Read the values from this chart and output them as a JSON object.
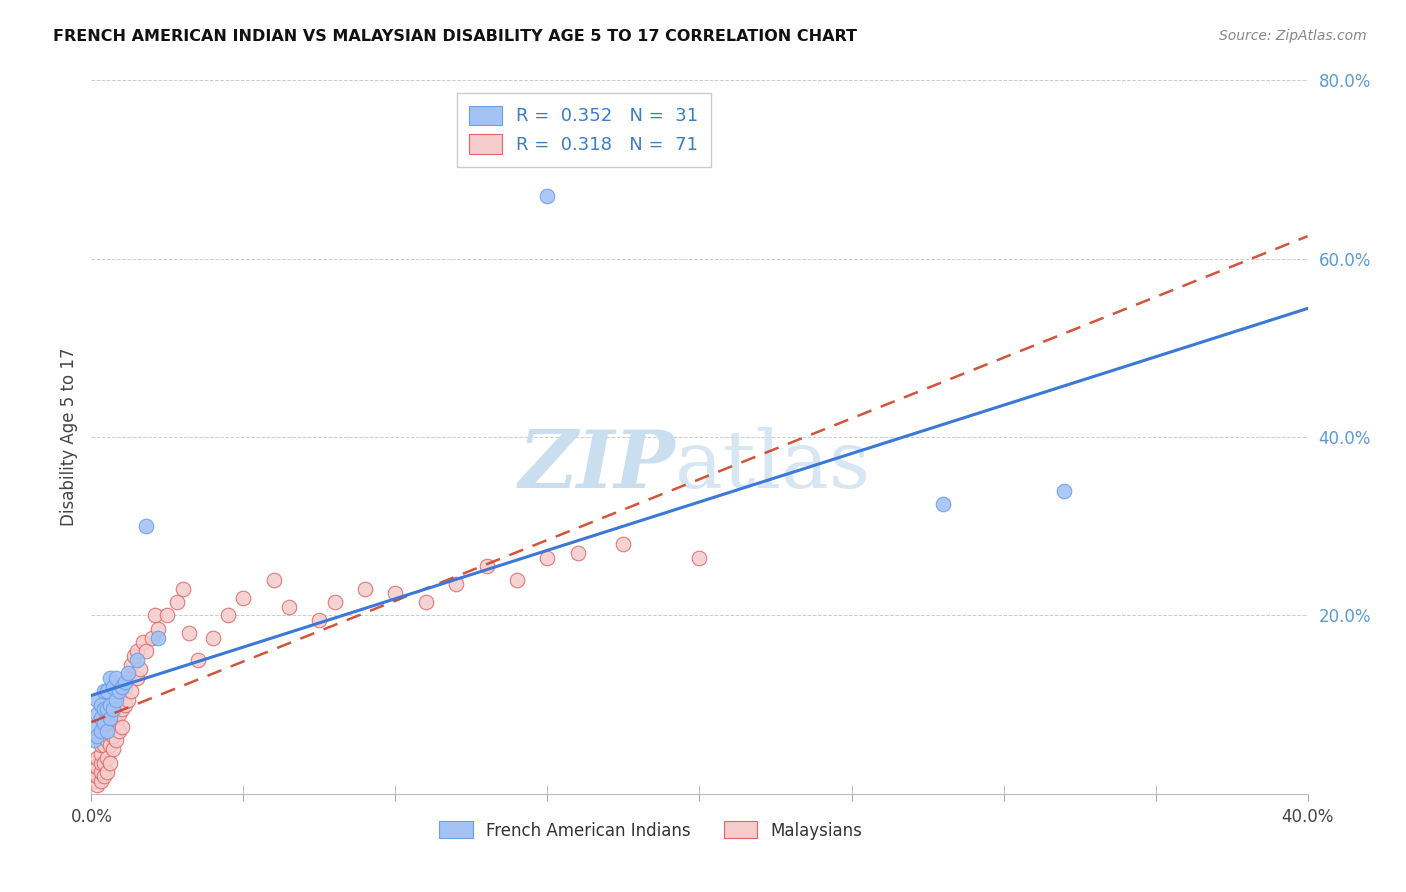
{
  "title": "FRENCH AMERICAN INDIAN VS MALAYSIAN DISABILITY AGE 5 TO 17 CORRELATION CHART",
  "source": "Source: ZipAtlas.com",
  "ylabel": "Disability Age 5 to 17",
  "xlim": [
    0.0,
    0.4
  ],
  "ylim": [
    0.0,
    0.8
  ],
  "xticks": [
    0.0,
    0.05,
    0.1,
    0.15,
    0.2,
    0.25,
    0.3,
    0.35,
    0.4
  ],
  "yticks": [
    0.0,
    0.2,
    0.4,
    0.6,
    0.8
  ],
  "xticklabels": [
    "0.0%",
    "",
    "",
    "",
    "",
    "",
    "",
    "",
    "40.0%"
  ],
  "right_yticklabels": [
    "",
    "20.0%",
    "40.0%",
    "60.0%",
    "80.0%"
  ],
  "legend_r1": "0.352",
  "legend_n1": "31",
  "legend_r2": "0.318",
  "legend_n2": "71",
  "blue_face": "#a4c2f4",
  "blue_edge": "#6d9eeb",
  "blue_line": "#3c78d8",
  "pink_face": "#f4cccc",
  "pink_edge": "#e06666",
  "pink_line": "#cc4125",
  "watermark_zip_color": "#cfe2f3",
  "watermark_atlas_color": "#b8d4e8",
  "grid_color": "#cccccc",
  "french_x": [
    0.001,
    0.001,
    0.002,
    0.002,
    0.002,
    0.003,
    0.003,
    0.003,
    0.004,
    0.004,
    0.004,
    0.005,
    0.005,
    0.005,
    0.006,
    0.006,
    0.006,
    0.007,
    0.007,
    0.008,
    0.008,
    0.009,
    0.01,
    0.011,
    0.012,
    0.015,
    0.018,
    0.022,
    0.15,
    0.28,
    0.32
  ],
  "french_y": [
    0.06,
    0.075,
    0.065,
    0.09,
    0.105,
    0.07,
    0.085,
    0.1,
    0.08,
    0.095,
    0.115,
    0.07,
    0.095,
    0.115,
    0.085,
    0.1,
    0.13,
    0.095,
    0.12,
    0.105,
    0.13,
    0.115,
    0.12,
    0.125,
    0.135,
    0.15,
    0.3,
    0.175,
    0.67,
    0.325,
    0.34
  ],
  "malay_x": [
    0.001,
    0.001,
    0.001,
    0.002,
    0.002,
    0.002,
    0.002,
    0.003,
    0.003,
    0.003,
    0.003,
    0.003,
    0.004,
    0.004,
    0.004,
    0.005,
    0.005,
    0.005,
    0.005,
    0.006,
    0.006,
    0.006,
    0.006,
    0.007,
    0.007,
    0.007,
    0.008,
    0.008,
    0.008,
    0.009,
    0.009,
    0.01,
    0.01,
    0.01,
    0.011,
    0.011,
    0.012,
    0.012,
    0.013,
    0.013,
    0.014,
    0.015,
    0.015,
    0.016,
    0.017,
    0.018,
    0.02,
    0.021,
    0.022,
    0.025,
    0.028,
    0.03,
    0.032,
    0.035,
    0.04,
    0.045,
    0.05,
    0.06,
    0.065,
    0.075,
    0.08,
    0.09,
    0.1,
    0.11,
    0.12,
    0.13,
    0.14,
    0.15,
    0.16,
    0.175,
    0.2
  ],
  "malay_y": [
    0.015,
    0.025,
    0.035,
    0.01,
    0.02,
    0.03,
    0.04,
    0.015,
    0.025,
    0.035,
    0.045,
    0.055,
    0.02,
    0.035,
    0.055,
    0.025,
    0.04,
    0.06,
    0.08,
    0.035,
    0.055,
    0.07,
    0.09,
    0.05,
    0.065,
    0.085,
    0.06,
    0.08,
    0.1,
    0.07,
    0.09,
    0.075,
    0.095,
    0.115,
    0.1,
    0.12,
    0.105,
    0.13,
    0.115,
    0.145,
    0.155,
    0.13,
    0.16,
    0.14,
    0.17,
    0.16,
    0.175,
    0.2,
    0.185,
    0.2,
    0.215,
    0.23,
    0.18,
    0.15,
    0.175,
    0.2,
    0.22,
    0.24,
    0.21,
    0.195,
    0.215,
    0.23,
    0.225,
    0.215,
    0.235,
    0.255,
    0.24,
    0.265,
    0.27,
    0.28,
    0.265
  ]
}
